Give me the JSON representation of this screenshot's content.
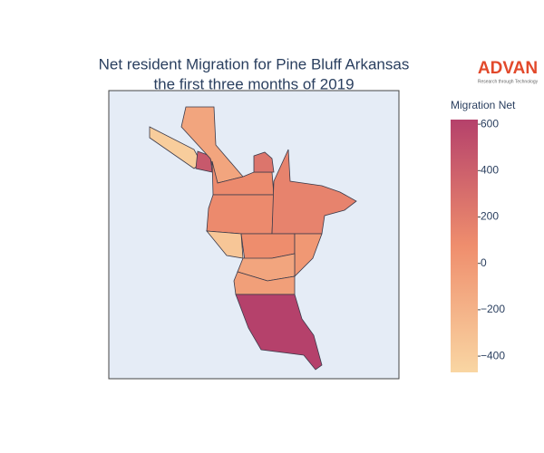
{
  "title": [
    "Net resident Migration for Pine Bluff Arkansas",
    "the first three months of 2019"
  ],
  "logo": {
    "name": "ADVAN",
    "tagline": "Research through Technology"
  },
  "chart_data": {
    "type": "choropleth",
    "regions": [
      -400,
      450,
      -100,
      100,
      250,
      100,
      150,
      -350,
      80,
      0,
      -100,
      -50,
      620
    ],
    "colorbar": {
      "title": "Migration Net",
      "lim": [
        -470,
        620
      ],
      "ticks": [
        600,
        400,
        200,
        0,
        {
          "value": -200,
          "label": "−200"
        },
        {
          "value": -400,
          "label": "−400"
        }
      ],
      "colors": [
        "#f9d6a3",
        "#ef8e6d",
        "#b5416b"
      ]
    }
  }
}
